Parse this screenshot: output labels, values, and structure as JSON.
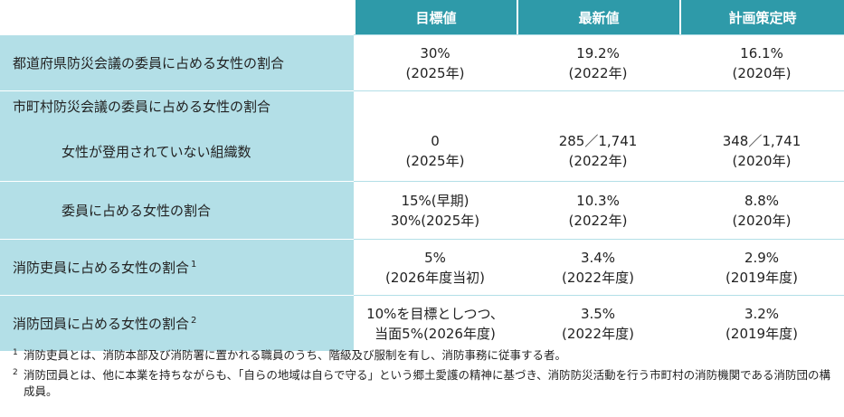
{
  "header": {
    "target": "目標値",
    "latest": "最新値",
    "plan": "計画策定時"
  },
  "rows": [
    {
      "label": "都道府県防災会議の委員に占める女性の割合",
      "target": [
        "30%",
        "(2025年)"
      ],
      "latest": [
        "19.2%",
        "(2022年)"
      ],
      "plan": [
        "16.1%",
        "(2020年)"
      ]
    },
    {
      "group_label": "市町村防災会議の委員に占める女性の割合"
    },
    {
      "label": "女性が登用されていない組織数",
      "target": [
        "0",
        "(2025年)"
      ],
      "latest": [
        "285／1,741",
        "(2022年)"
      ],
      "plan": [
        "348／1,741",
        "(2020年)"
      ]
    },
    {
      "label": "委員に占める女性の割合",
      "target": [
        "15%(早期)",
        "30%(2025年)"
      ],
      "latest": [
        "10.3%",
        "(2022年)"
      ],
      "plan": [
        "8.8%",
        "(2020年)"
      ]
    },
    {
      "label": "消防吏員に占める女性の割合",
      "sup": "1",
      "target": [
        "5%",
        "(2026年度当初)"
      ],
      "latest": [
        "3.4%",
        "(2022年度)"
      ],
      "plan": [
        "2.9%",
        "(2019年度)"
      ]
    },
    {
      "label": "消防団員に占める女性の割合",
      "sup": "2",
      "target": [
        "10%を目標としつつ、",
        "当面5%(2026年度)"
      ],
      "latest": [
        "3.5%",
        "(2022年度)"
      ],
      "plan": [
        "3.2%",
        "(2019年度)"
      ]
    }
  ],
  "notes": [
    {
      "num": "1",
      "text": "消防吏員とは、消防本部及び消防署に置かれる職員のうち、階級及び服制を有し、消防事務に従事する者。"
    },
    {
      "num": "2",
      "text": "消防団員とは、他に本業を持ちながらも、「自らの地域は自らで守る」という郷土愛護の精神に基づき、消防防災活動を行う市町村の消防機関である消防団の構成員。"
    }
  ]
}
